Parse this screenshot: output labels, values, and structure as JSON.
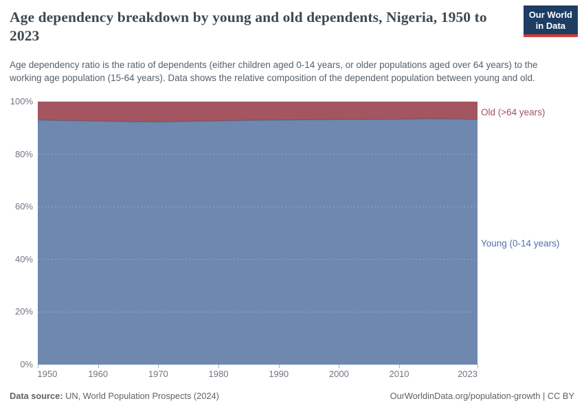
{
  "header": {
    "title": "Age dependency breakdown by young and old dependents, Nigeria, 1950 to 2023",
    "subtitle": "Age dependency ratio is the ratio of dependents (either children aged 0-14 years, or older populations aged over 64 years) to the working age population (15-64 years). Data shows the relative composition of the dependent population between young and old.",
    "logo": {
      "line1": "Our World",
      "line2": "in Data",
      "bg_color": "#1d3d63",
      "bar_color": "#d93a34"
    }
  },
  "legend": {
    "old_label": "Old (>64 years)",
    "young_label": "Young (0-14 years)",
    "old_color": "#a0505c",
    "young_color": "#4d72ac"
  },
  "footer": {
    "datasource_label": "Data source:",
    "datasource_value": " UN, World Population Prospects (2024)",
    "right_text": "OurWorldinData.org/population-growth | CC BY"
  },
  "chart_data": {
    "type": "area",
    "stacked": true,
    "title": "Age dependency breakdown by young and old dependents, Nigeria, 1950 to 2023",
    "xlabel": "",
    "ylabel": "",
    "xlim": [
      1950,
      2023
    ],
    "ylim": [
      0,
      100
    ],
    "grid": "dashed-horizontal",
    "legend_position": "right-of-area",
    "x": [
      1950,
      1955,
      1960,
      1965,
      1970,
      1975,
      1980,
      1985,
      1990,
      1995,
      2000,
      2005,
      2010,
      2015,
      2020,
      2023
    ],
    "series": [
      {
        "name": "Young (0-14 years)",
        "color": "#6e88b0",
        "values": [
          93.0,
          92.8,
          92.6,
          92.4,
          92.3,
          92.5,
          92.7,
          92.9,
          93.0,
          93.1,
          93.2,
          93.25,
          93.3,
          93.5,
          93.4,
          93.2
        ]
      },
      {
        "name": "Old (>64 years)",
        "color": "#a4555f",
        "values": [
          7.0,
          7.2,
          7.4,
          7.6,
          7.7,
          7.5,
          7.3,
          7.1,
          7.0,
          6.9,
          6.8,
          6.75,
          6.7,
          6.5,
          6.6,
          6.8
        ]
      }
    ],
    "y_ticks": [
      0,
      20,
      40,
      60,
      80,
      100
    ],
    "y_tick_suffix": "%",
    "x_ticks": [
      1950,
      1960,
      1970,
      1980,
      1990,
      2000,
      2010,
      2023
    ],
    "boundary_line_color": "#44536b"
  }
}
